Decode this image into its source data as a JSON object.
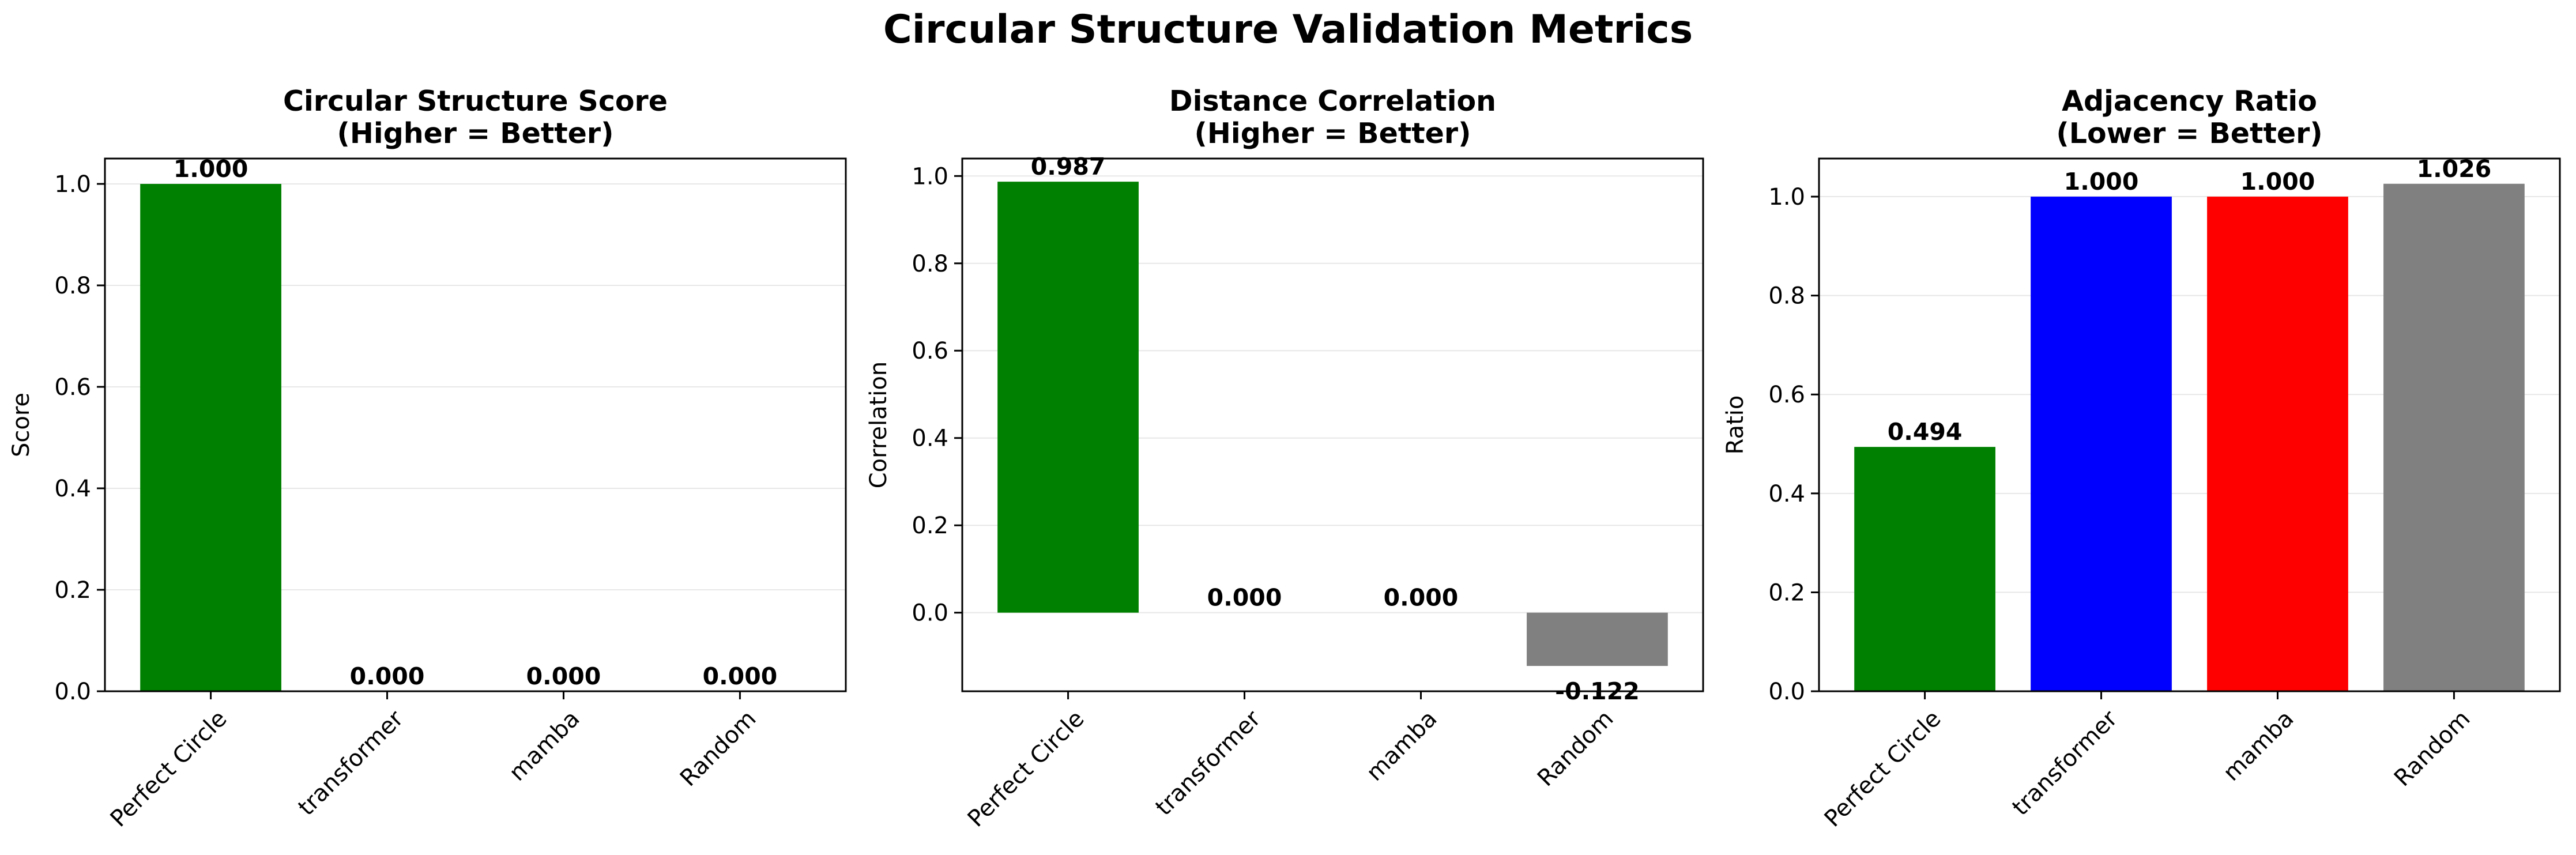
{
  "figure": {
    "title": "Circular Structure Validation Metrics"
  },
  "chart_data": [
    {
      "type": "bar",
      "title": "Circular Structure Score\n(Higher = Better)",
      "xlabel": "",
      "ylabel": "Score",
      "categories": [
        "Perfect Circle",
        "transformer",
        "mamba",
        "Random"
      ],
      "values": [
        1.0,
        0.0,
        0.0,
        0.0
      ],
      "value_labels": [
        "1.000",
        "0.000",
        "0.000",
        "0.000"
      ],
      "colors": [
        "#008000",
        "#0000ff",
        "#ff0000",
        "#808080"
      ],
      "ylim": [
        0,
        1.05
      ],
      "yticks": [
        0.0,
        0.2,
        0.4,
        0.6,
        0.8,
        1.0
      ],
      "ytick_labels": [
        "0.0",
        "0.2",
        "0.4",
        "0.6",
        "0.8",
        "1.0"
      ],
      "grid": "y"
    },
    {
      "type": "bar",
      "title": "Distance Correlation\n(Higher = Better)",
      "xlabel": "",
      "ylabel": "Correlation",
      "categories": [
        "Perfect Circle",
        "transformer",
        "mamba",
        "Random"
      ],
      "values": [
        0.987,
        0.0,
        0.0,
        -0.122
      ],
      "value_labels": [
        "0.987",
        "0.000",
        "0.000",
        "-0.122"
      ],
      "colors": [
        "#008000",
        "#0000ff",
        "#ff0000",
        "#808080"
      ],
      "ylim": [
        -0.18,
        1.04
      ],
      "yticks": [
        0.0,
        0.2,
        0.4,
        0.6,
        0.8,
        1.0
      ],
      "ytick_labels": [
        "0.0",
        "0.2",
        "0.4",
        "0.6",
        "0.8",
        "1.0"
      ],
      "grid": "y"
    },
    {
      "type": "bar",
      "title": "Adjacency Ratio\n(Lower = Better)",
      "xlabel": "",
      "ylabel": "Ratio",
      "categories": [
        "Perfect Circle",
        "transformer",
        "mamba",
        "Random"
      ],
      "values": [
        0.494,
        1.0,
        1.0,
        1.026
      ],
      "value_labels": [
        "0.494",
        "1.000",
        "1.000",
        "1.026"
      ],
      "colors": [
        "#008000",
        "#0000ff",
        "#ff0000",
        "#808080"
      ],
      "ylim": [
        0,
        1.077
      ],
      "yticks": [
        0.0,
        0.2,
        0.4,
        0.6,
        0.8,
        1.0
      ],
      "ytick_labels": [
        "0.0",
        "0.2",
        "0.4",
        "0.6",
        "0.8",
        "1.0"
      ],
      "grid": "y"
    }
  ]
}
